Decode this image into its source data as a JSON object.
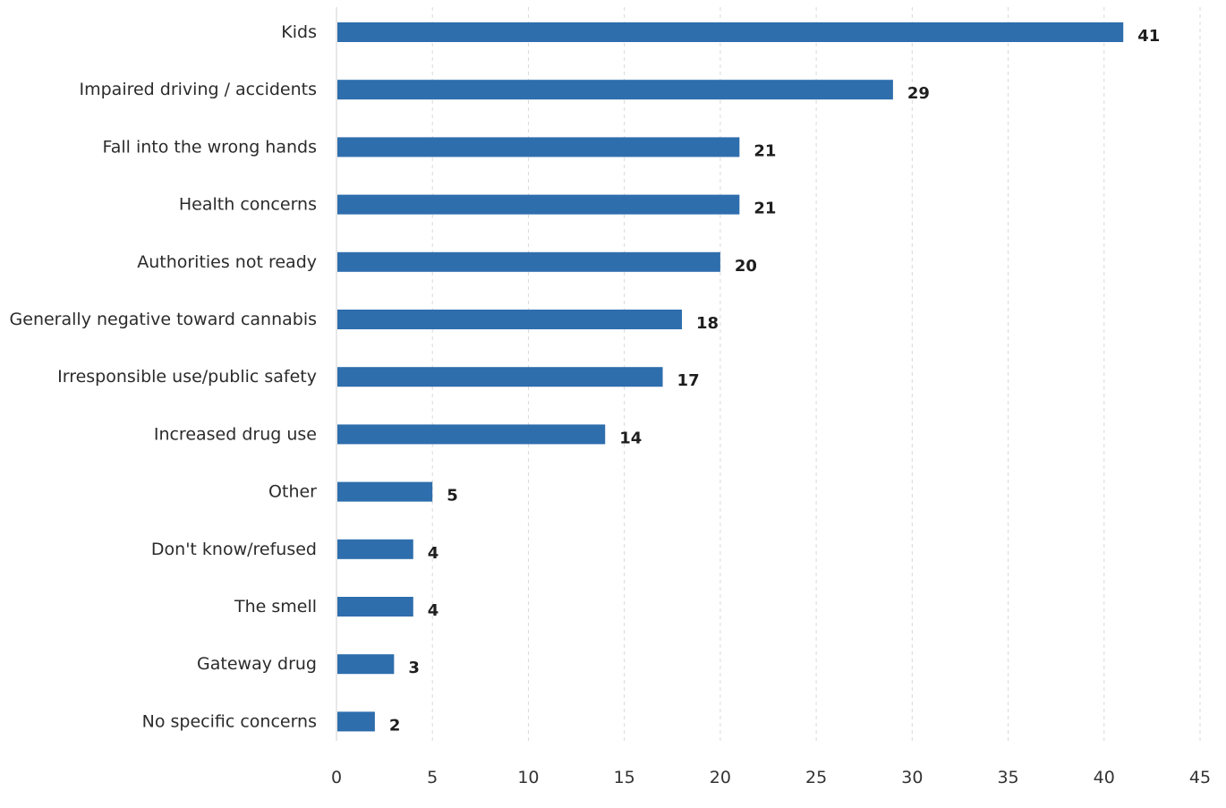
{
  "chart_data": {
    "type": "bar",
    "orientation": "horizontal",
    "categories": [
      "Kids",
      "Impaired driving / accidents",
      "Fall into the wrong hands",
      "Health concerns",
      "Authorities not ready",
      "Generally negative toward cannabis",
      "Irresponsible use/public safety",
      "Increased drug use",
      "Other",
      "Don't know/refused",
      "The smell",
      "Gateway drug",
      "No specific concerns"
    ],
    "values": [
      41,
      29,
      21,
      21,
      20,
      18,
      17,
      14,
      5,
      4,
      4,
      3,
      2
    ],
    "value_labels": [
      "41",
      "29",
      "21",
      "21",
      "20",
      "18",
      "17",
      "14",
      "5",
      "4",
      "4",
      "3",
      "2"
    ],
    "xlim": [
      0,
      45
    ],
    "xticks": [
      0,
      5,
      10,
      15,
      20,
      25,
      30,
      35,
      40,
      45
    ],
    "xtick_labels": [
      "0",
      "5",
      "10",
      "15",
      "20",
      "25",
      "30",
      "35",
      "40",
      "45"
    ],
    "grid": true,
    "legend": "none",
    "bar_color": "#2e6ead"
  }
}
